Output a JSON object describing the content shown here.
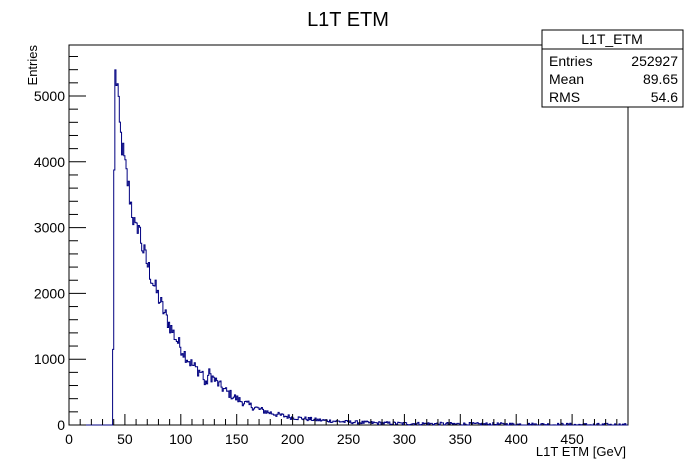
{
  "chart_data": {
    "type": "histogram",
    "title": "L1T ETM",
    "xlabel": "L1T ETM [GeV]",
    "ylabel": "Entries",
    "xlim": [
      0,
      500
    ],
    "ylim": [
      0,
      5775
    ],
    "x_ticks": [
      0,
      50,
      100,
      150,
      200,
      250,
      300,
      350,
      400,
      450
    ],
    "y_ticks": [
      0,
      1000,
      2000,
      3000,
      4000,
      5000
    ],
    "grid": false,
    "line_color": "#000080",
    "bin_width": 1,
    "x": [
      39,
      40,
      41,
      42,
      43,
      45,
      47,
      50,
      53,
      56,
      59,
      60,
      62,
      65,
      70,
      75,
      80,
      85,
      90,
      95,
      100,
      105,
      110,
      115,
      120,
      122,
      125,
      130,
      135,
      140,
      150,
      160,
      170,
      180,
      190,
      200,
      225,
      250,
      275,
      300,
      350,
      400,
      430,
      450,
      499
    ],
    "values": [
      0,
      2300,
      5450,
      5200,
      5300,
      4600,
      4300,
      3950,
      3650,
      3300,
      3000,
      2900,
      3100,
      2750,
      2450,
      2180,
      1950,
      1720,
      1520,
      1340,
      1180,
      1040,
      920,
      840,
      780,
      560,
      790,
      690,
      600,
      520,
      400,
      310,
      240,
      185,
      145,
      115,
      72,
      45,
      30,
      22,
      14,
      9,
      6,
      3,
      0
    ]
  },
  "stats_box": {
    "name": "L1T_ETM",
    "rows": [
      {
        "label": "Entries",
        "value": "252927"
      },
      {
        "label": "Mean",
        "value": "89.65"
      },
      {
        "label": "RMS",
        "value": "54.6"
      }
    ]
  }
}
